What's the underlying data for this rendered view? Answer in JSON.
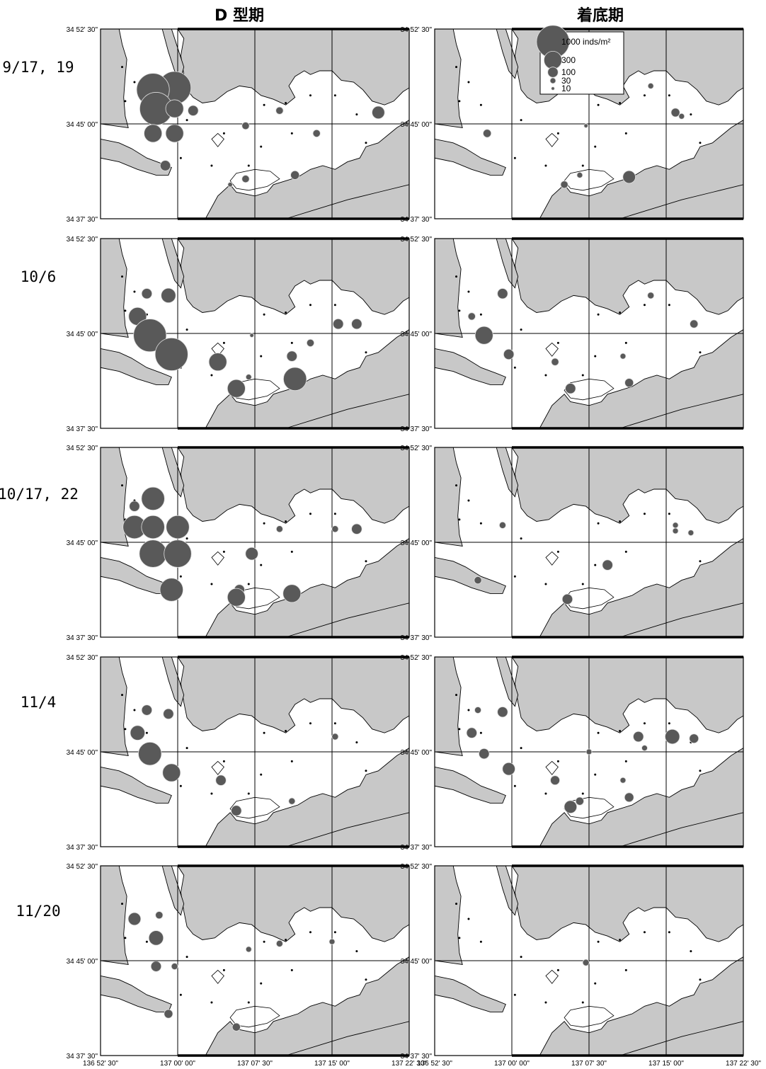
{
  "columns": {
    "left": "D 型期",
    "right": "着底期"
  },
  "rows": [
    {
      "date": "9/17, 19",
      "left": [
        [
          0.24,
          0.31,
          1000
        ],
        [
          0.17,
          0.32,
          1000
        ],
        [
          0.18,
          0.42,
          1000
        ],
        [
          0.24,
          0.42,
          300
        ],
        [
          0.3,
          0.43,
          100
        ],
        [
          0.17,
          0.55,
          300
        ],
        [
          0.24,
          0.55,
          300
        ],
        [
          0.21,
          0.72,
          100
        ],
        [
          0.47,
          0.51,
          50
        ],
        [
          0.58,
          0.43,
          50
        ],
        [
          0.7,
          0.55,
          50
        ],
        [
          0.9,
          0.44,
          150
        ],
        [
          0.47,
          0.79,
          50
        ],
        [
          0.42,
          0.82,
          20
        ],
        [
          0.63,
          0.77,
          70
        ]
      ],
      "right": [
        [
          0.17,
          0.55,
          60
        ],
        [
          0.49,
          0.51,
          15
        ],
        [
          0.63,
          0.78,
          150
        ],
        [
          0.42,
          0.82,
          50
        ],
        [
          0.47,
          0.77,
          30
        ],
        [
          0.78,
          0.44,
          70
        ],
        [
          0.8,
          0.46,
          30
        ],
        [
          0.7,
          0.3,
          30
        ]
      ]
    },
    {
      "date": "10/6",
      "left": [
        [
          0.15,
          0.29,
          100
        ],
        [
          0.22,
          0.3,
          200
        ],
        [
          0.12,
          0.41,
          300
        ],
        [
          0.16,
          0.51,
          1000
        ],
        [
          0.23,
          0.61,
          1000
        ],
        [
          0.38,
          0.65,
          300
        ],
        [
          0.44,
          0.79,
          300
        ],
        [
          0.48,
          0.73,
          30
        ],
        [
          0.63,
          0.74,
          500
        ],
        [
          0.62,
          0.62,
          100
        ],
        [
          0.68,
          0.55,
          50
        ],
        [
          0.77,
          0.45,
          100
        ],
        [
          0.83,
          0.45,
          100
        ],
        [
          0.49,
          0.51,
          15
        ]
      ],
      "right": [
        [
          0.22,
          0.29,
          100
        ],
        [
          0.12,
          0.41,
          50
        ],
        [
          0.16,
          0.51,
          300
        ],
        [
          0.24,
          0.61,
          100
        ],
        [
          0.39,
          0.65,
          50
        ],
        [
          0.44,
          0.79,
          100
        ],
        [
          0.61,
          0.62,
          30
        ],
        [
          0.63,
          0.76,
          70
        ],
        [
          0.7,
          0.3,
          40
        ],
        [
          0.84,
          0.45,
          60
        ]
      ]
    },
    {
      "date": "10/17, 22",
      "left": [
        [
          0.17,
          0.27,
          500
        ],
        [
          0.11,
          0.31,
          100
        ],
        [
          0.11,
          0.42,
          500
        ],
        [
          0.17,
          0.42,
          500
        ],
        [
          0.25,
          0.42,
          500
        ],
        [
          0.17,
          0.56,
          700
        ],
        [
          0.25,
          0.56,
          700
        ],
        [
          0.23,
          0.75,
          500
        ],
        [
          0.49,
          0.56,
          150
        ],
        [
          0.45,
          0.75,
          100
        ],
        [
          0.44,
          0.79,
          300
        ],
        [
          0.62,
          0.77,
          300
        ],
        [
          0.58,
          0.43,
          40
        ],
        [
          0.76,
          0.43,
          40
        ],
        [
          0.83,
          0.43,
          100
        ]
      ],
      "right": [
        [
          0.22,
          0.41,
          40
        ],
        [
          0.14,
          0.7,
          50
        ],
        [
          0.43,
          0.8,
          100
        ],
        [
          0.56,
          0.62,
          100
        ],
        [
          0.78,
          0.41,
          30
        ],
        [
          0.78,
          0.44,
          30
        ],
        [
          0.83,
          0.45,
          30
        ]
      ]
    },
    {
      "date": "11/4",
      "left": [
        [
          0.15,
          0.28,
          100
        ],
        [
          0.22,
          0.3,
          100
        ],
        [
          0.12,
          0.4,
          200
        ],
        [
          0.16,
          0.51,
          500
        ],
        [
          0.23,
          0.61,
          300
        ],
        [
          0.39,
          0.65,
          100
        ],
        [
          0.44,
          0.81,
          100
        ],
        [
          0.62,
          0.76,
          40
        ],
        [
          0.76,
          0.42,
          40
        ]
      ],
      "right": [
        [
          0.14,
          0.28,
          40
        ],
        [
          0.22,
          0.29,
          100
        ],
        [
          0.12,
          0.4,
          100
        ],
        [
          0.16,
          0.51,
          100
        ],
        [
          0.24,
          0.59,
          150
        ],
        [
          0.39,
          0.65,
          80
        ],
        [
          0.44,
          0.79,
          150
        ],
        [
          0.47,
          0.76,
          60
        ],
        [
          0.61,
          0.65,
          30
        ],
        [
          0.63,
          0.74,
          80
        ],
        [
          0.68,
          0.48,
          30
        ],
        [
          0.66,
          0.42,
          100
        ],
        [
          0.77,
          0.42,
          200
        ],
        [
          0.84,
          0.43,
          80
        ],
        [
          0.5,
          0.5,
          30
        ]
      ]
    },
    {
      "date": "11/20",
      "left": [
        [
          0.11,
          0.28,
          150
        ],
        [
          0.19,
          0.26,
          50
        ],
        [
          0.18,
          0.38,
          200
        ],
        [
          0.18,
          0.53,
          100
        ],
        [
          0.24,
          0.53,
          40
        ],
        [
          0.22,
          0.78,
          70
        ],
        [
          0.44,
          0.85,
          60
        ],
        [
          0.48,
          0.44,
          30
        ],
        [
          0.75,
          0.4,
          30
        ],
        [
          0.58,
          0.41,
          40
        ]
      ],
      "right": [
        [
          0.49,
          0.51,
          40
        ]
      ]
    }
  ],
  "small_stations": [
    [
      0.07,
      0.2
    ],
    [
      0.11,
      0.28
    ],
    [
      0.08,
      0.38
    ],
    [
      0.15,
      0.4
    ],
    [
      0.28,
      0.48
    ],
    [
      0.4,
      0.55
    ],
    [
      0.53,
      0.4
    ],
    [
      0.6,
      0.39
    ],
    [
      0.62,
      0.55
    ],
    [
      0.68,
      0.35
    ],
    [
      0.76,
      0.35
    ],
    [
      0.83,
      0.45
    ],
    [
      0.86,
      0.6
    ],
    [
      0.52,
      0.62
    ],
    [
      0.48,
      0.72
    ],
    [
      0.36,
      0.72
    ],
    [
      0.26,
      0.68
    ]
  ],
  "legend": {
    "items": [
      {
        "value": 1000,
        "label": "1000 inds/m²"
      },
      {
        "value": 300,
        "label": "300"
      },
      {
        "value": 100,
        "label": "100"
      },
      {
        "value": 30,
        "label": "30"
      },
      {
        "value": 10,
        "label": "10"
      }
    ]
  },
  "lat_labels": [
    "34 52' 30\"",
    "34 45' 00\"",
    "34 37' 30\""
  ],
  "lon_labels": [
    "136 52' 30\"",
    "137 00' 00\"",
    "137 07' 30\"",
    "137 15' 00\"",
    "137 22' 30\""
  ],
  "colors": {
    "land": "#c8c8c8",
    "sea": "#ffffff",
    "bubble": "#595959",
    "bubble_edge": "#e0e0e0",
    "frame": "#000000"
  }
}
